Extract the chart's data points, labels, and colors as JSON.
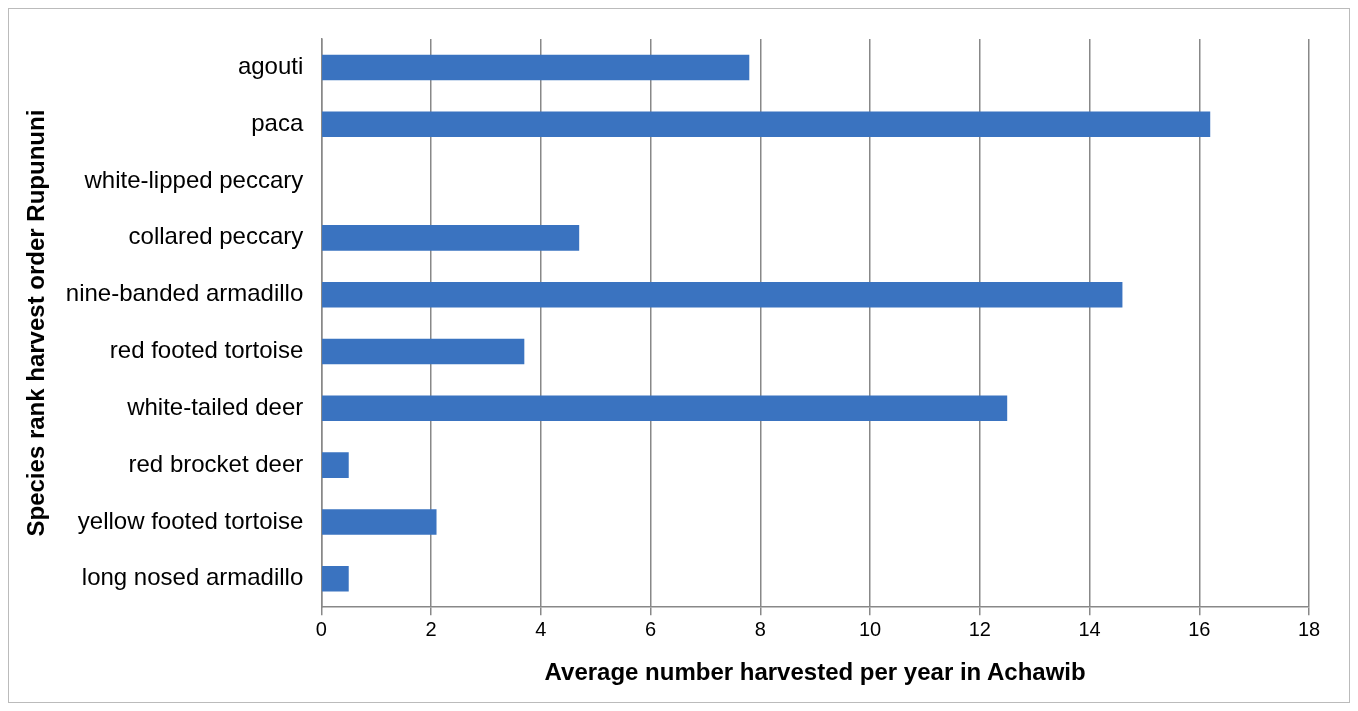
{
  "chart_data": {
    "type": "bar",
    "orientation": "horizontal",
    "xlabel": "Average number harvested per year in Achawib",
    "ylabel": "Species rank harvest order Rupununi",
    "categories": [
      "agouti",
      "paca",
      "white-lipped peccary",
      "collared peccary",
      "nine-banded armadillo",
      "red footed tortoise",
      "white-tailed deer",
      "red brocket deer",
      "yellow footed tortoise",
      "long nosed armadillo"
    ],
    "values": [
      7.8,
      16.2,
      0,
      4.7,
      14.6,
      3.7,
      12.5,
      0.5,
      2.1,
      0.5
    ],
    "color": "#3a73c0",
    "xlim": [
      0,
      18
    ],
    "xticks": [
      0,
      2,
      4,
      6,
      8,
      10,
      12,
      14,
      16,
      18
    ],
    "grid": "x",
    "legend": false
  }
}
